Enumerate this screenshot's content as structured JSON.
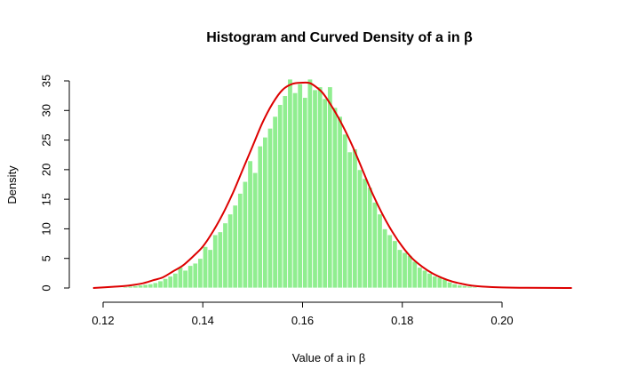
{
  "chart_data": {
    "type": "bar",
    "title": "Histogram and Curved Density of a in β",
    "xlabel": "Value of a in β",
    "ylabel": "Density",
    "xlim": [
      0.118,
      0.214
    ],
    "ylim": [
      0,
      35
    ],
    "x_ticks": [
      0.12,
      0.14,
      0.16,
      0.18,
      0.2
    ],
    "x_tick_labels": [
      "0.12",
      "0.14",
      "0.16",
      "0.18",
      "0.20"
    ],
    "y_ticks": [
      0,
      5,
      10,
      15,
      20,
      25,
      30,
      35
    ],
    "y_tick_labels": [
      "0",
      "5",
      "10",
      "15",
      "20",
      "25",
      "30",
      "35"
    ],
    "bar_color": "#90EE90",
    "curve_color": "#DD0000",
    "bin_width": 0.001,
    "bin_start": [
      0.124,
      0.125,
      0.126,
      0.127,
      0.128,
      0.129,
      0.13,
      0.131,
      0.132,
      0.133,
      0.134,
      0.135,
      0.136,
      0.137,
      0.138,
      0.139,
      0.14,
      0.141,
      0.142,
      0.143,
      0.144,
      0.145,
      0.146,
      0.147,
      0.148,
      0.149,
      0.15,
      0.151,
      0.152,
      0.153,
      0.154,
      0.155,
      0.156,
      0.157,
      0.158,
      0.159,
      0.16,
      0.161,
      0.162,
      0.163,
      0.164,
      0.165,
      0.166,
      0.167,
      0.168,
      0.169,
      0.17,
      0.171,
      0.172,
      0.173,
      0.174,
      0.175,
      0.176,
      0.177,
      0.178,
      0.179,
      0.18,
      0.181,
      0.182,
      0.183,
      0.184,
      0.185,
      0.186,
      0.187,
      0.188,
      0.189,
      0.19,
      0.191,
      0.192,
      0.193,
      0.194,
      0.195
    ],
    "bin_density": [
      0.2,
      0.3,
      0.4,
      0.5,
      0.6,
      0.7,
      0.9,
      1.2,
      1.6,
      2.0,
      2.5,
      3.5,
      3.0,
      3.8,
      4.2,
      5.0,
      7.0,
      6.5,
      9.0,
      9.5,
      11.0,
      12.5,
      14.0,
      16.0,
      18.0,
      21.5,
      19.5,
      24.0,
      25.5,
      27.0,
      29.0,
      31.0,
      32.5,
      35.3,
      33.0,
      34.5,
      32.2,
      35.3,
      33.5,
      34.0,
      32.0,
      34.0,
      30.5,
      29.0,
      26.0,
      23.0,
      23.5,
      20.0,
      18.5,
      17.0,
      14.5,
      12.5,
      10.0,
      9.0,
      8.0,
      6.5,
      6.0,
      5.5,
      4.5,
      3.5,
      3.0,
      2.5,
      2.0,
      1.8,
      1.5,
      1.0,
      0.7,
      0.5,
      0.4,
      0.3,
      0.2,
      0.1
    ],
    "density_curve": {
      "x": [
        0.118,
        0.122,
        0.125,
        0.128,
        0.13,
        0.132,
        0.134,
        0.136,
        0.138,
        0.14,
        0.142,
        0.144,
        0.146,
        0.148,
        0.15,
        0.152,
        0.154,
        0.156,
        0.158,
        0.16,
        0.161,
        0.162,
        0.164,
        0.166,
        0.168,
        0.17,
        0.172,
        0.174,
        0.176,
        0.178,
        0.18,
        0.182,
        0.184,
        0.186,
        0.188,
        0.19,
        0.192,
        0.194,
        0.196,
        0.2,
        0.205,
        0.214
      ],
      "y": [
        0.0,
        0.2,
        0.4,
        0.8,
        1.3,
        1.8,
        2.8,
        3.8,
        5.3,
        7.0,
        9.5,
        12.5,
        16.0,
        20.0,
        24.0,
        28.0,
        31.2,
        33.5,
        34.5,
        34.7,
        34.7,
        34.4,
        33.0,
        30.5,
        27.5,
        24.0,
        20.0,
        16.0,
        12.5,
        9.5,
        7.0,
        5.0,
        3.6,
        2.5,
        1.7,
        1.1,
        0.7,
        0.4,
        0.25,
        0.1,
        0.03,
        0.0
      ]
    }
  }
}
